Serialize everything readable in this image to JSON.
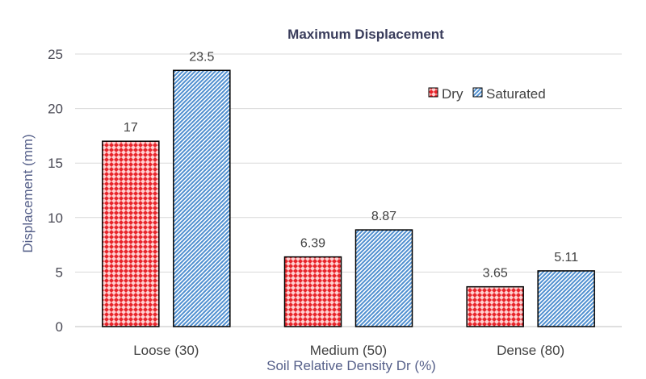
{
  "chart_data": {
    "type": "bar",
    "title": "Maximum Displacement",
    "xlabel": "Soil  Relative Density Dr (%)",
    "ylabel": "Displacement (mm)",
    "categories": [
      "Loose (30)",
      "Medium (50)",
      "Dense (80)"
    ],
    "series": [
      {
        "name": "Dry",
        "values": [
          17,
          6.39,
          3.65
        ],
        "labels": [
          "17",
          "6.39",
          "3.65"
        ],
        "color": "#e03030",
        "pattern": "red-crosshatch"
      },
      {
        "name": "Saturated",
        "values": [
          23.5,
          8.87,
          5.11
        ],
        "labels": [
          "23.5",
          "8.87",
          "5.11"
        ],
        "color": "#5b9bd5",
        "pattern": "blue-diagonal"
      }
    ],
    "ylim": [
      0,
      25
    ],
    "yticks": [
      0,
      5,
      10,
      15,
      20,
      25
    ],
    "grid": true,
    "legend": "top-right"
  }
}
